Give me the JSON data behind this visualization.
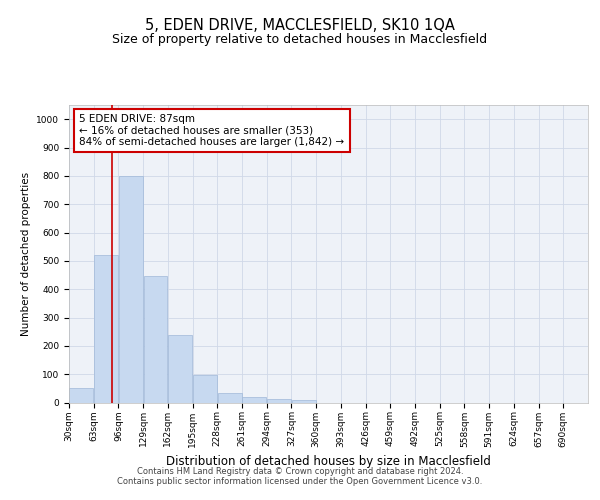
{
  "title": "5, EDEN DRIVE, MACCLESFIELD, SK10 1QA",
  "subtitle": "Size of property relative to detached houses in Macclesfield",
  "xlabel": "Distribution of detached houses by size in Macclesfield",
  "ylabel": "Number of detached properties",
  "bin_labels": [
    "30sqm",
    "63sqm",
    "96sqm",
    "129sqm",
    "162sqm",
    "195sqm",
    "228sqm",
    "261sqm",
    "294sqm",
    "327sqm",
    "360sqm",
    "393sqm",
    "426sqm",
    "459sqm",
    "492sqm",
    "525sqm",
    "558sqm",
    "591sqm",
    "624sqm",
    "657sqm",
    "690sqm"
  ],
  "bar_heights": [
    50,
    520,
    800,
    445,
    237,
    97,
    35,
    20,
    13,
    8,
    0,
    0,
    0,
    0,
    0,
    0,
    0,
    0,
    0,
    0,
    0
  ],
  "bin_edges": [
    30,
    63,
    96,
    129,
    162,
    195,
    228,
    261,
    294,
    327,
    360,
    393,
    426,
    459,
    492,
    525,
    558,
    591,
    624,
    657,
    690
  ],
  "bin_width": 33,
  "bar_color": "#c7d9f0",
  "bar_edgecolor": "#a0b8d8",
  "property_value": 87,
  "property_line_color": "#cc0000",
  "annotation_line1": "5 EDEN DRIVE: 87sqm",
  "annotation_line2": "← 16% of detached houses are smaller (353)",
  "annotation_line3": "84% of semi-detached houses are larger (1,842) →",
  "annotation_box_color": "#ffffff",
  "annotation_box_edgecolor": "#cc0000",
  "ylim": [
    0,
    1050
  ],
  "yticks": [
    0,
    100,
    200,
    300,
    400,
    500,
    600,
    700,
    800,
    900,
    1000
  ],
  "grid_color": "#d0d8e8",
  "background_color": "#eef2f8",
  "footer_line1": "Contains HM Land Registry data © Crown copyright and database right 2024.",
  "footer_line2": "Contains public sector information licensed under the Open Government Licence v3.0.",
  "title_fontsize": 10.5,
  "subtitle_fontsize": 9,
  "xlabel_fontsize": 8.5,
  "ylabel_fontsize": 7.5,
  "tick_fontsize": 6.5,
  "annotation_fontsize": 7.5,
  "footer_fontsize": 6
}
